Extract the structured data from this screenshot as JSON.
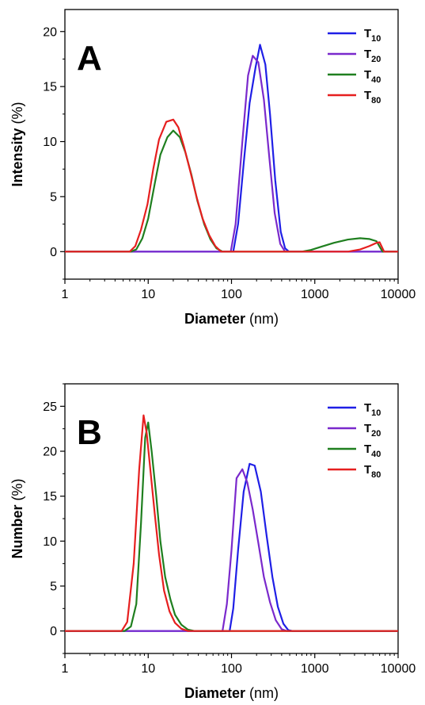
{
  "chart_data": [
    {
      "type": "line",
      "panel_label": "A",
      "xscale": "log",
      "xlim": [
        1,
        10000
      ],
      "ylim": [
        -2.5,
        22
      ],
      "xticks": [
        1,
        10,
        100,
        1000,
        10000
      ],
      "xticklabels": [
        "1",
        "10",
        "100",
        "1000",
        "10000"
      ],
      "yticks": [
        0,
        5,
        10,
        15,
        20
      ],
      "yticklabels": [
        "0",
        "5",
        "10",
        "15",
        "20"
      ],
      "xlabel_bold": "Diameter",
      "xlabel_unit": "(nm)",
      "ylabel_bold": "Intensity",
      "ylabel_unit": "(%)",
      "legend": "top-right",
      "grid": false,
      "series": [
        {
          "name": "T",
          "sub": "10",
          "color": "#1f1fe6",
          "points": [
            [
              1,
              0
            ],
            [
              90,
              0
            ],
            [
              105,
              0
            ],
            [
              120,
              2.5
            ],
            [
              140,
              8
            ],
            [
              165,
              13.5
            ],
            [
              195,
              16.8
            ],
            [
              220,
              18.8
            ],
            [
              255,
              17
            ],
            [
              290,
              12.5
            ],
            [
              335,
              6.5
            ],
            [
              390,
              1.8
            ],
            [
              440,
              0.3
            ],
            [
              490,
              0
            ],
            [
              10000,
              0
            ]
          ]
        },
        {
          "name": "T",
          "sub": "20",
          "color": "#7a29cc",
          "points": [
            [
              1,
              0
            ],
            [
              85,
              0
            ],
            [
              98,
              0
            ],
            [
              112,
              2.5
            ],
            [
              135,
              10
            ],
            [
              158,
              16
            ],
            [
              180,
              17.8
            ],
            [
              210,
              17.2
            ],
            [
              245,
              13.8
            ],
            [
              285,
              8.5
            ],
            [
              330,
              3.5
            ],
            [
              385,
              0.7
            ],
            [
              440,
              0
            ],
            [
              10000,
              0
            ]
          ]
        },
        {
          "name": "T",
          "sub": "40",
          "color": "#1f7f1f",
          "points": [
            [
              1,
              0
            ],
            [
              6.2,
              0
            ],
            [
              7.2,
              0.2
            ],
            [
              8.5,
              1.2
            ],
            [
              10,
              3
            ],
            [
              12,
              6.2
            ],
            [
              14,
              8.8
            ],
            [
              17,
              10.4
            ],
            [
              20,
              11
            ],
            [
              24,
              10.4
            ],
            [
              28,
              9
            ],
            [
              33,
              7
            ],
            [
              39,
              4.6
            ],
            [
              47,
              2.5
            ],
            [
              56,
              1.1
            ],
            [
              66,
              0.3
            ],
            [
              78,
              0
            ],
            [
              700,
              0
            ],
            [
              900,
              0.15
            ],
            [
              1200,
              0.45
            ],
            [
              1700,
              0.8
            ],
            [
              2500,
              1.1
            ],
            [
              3500,
              1.22
            ],
            [
              4500,
              1.15
            ],
            [
              5500,
              0.95
            ],
            [
              6500,
              0
            ],
            [
              10000,
              0
            ]
          ]
        },
        {
          "name": "T",
          "sub": "80",
          "color": "#e61f1f",
          "points": [
            [
              1,
              0
            ],
            [
              6,
              0
            ],
            [
              7,
              0.5
            ],
            [
              8.2,
              2
            ],
            [
              9.8,
              4.3
            ],
            [
              11.5,
              7.5
            ],
            [
              13.5,
              10.2
            ],
            [
              16.5,
              11.8
            ],
            [
              20,
              12
            ],
            [
              23,
              11.3
            ],
            [
              27,
              9.5
            ],
            [
              32,
              7.3
            ],
            [
              38,
              5
            ],
            [
              45,
              3
            ],
            [
              54,
              1.5
            ],
            [
              64,
              0.5
            ],
            [
              75,
              0
            ],
            [
              2500,
              0
            ],
            [
              3500,
              0.2
            ],
            [
              4500,
              0.5
            ],
            [
              5500,
              0.8
            ],
            [
              6000,
              0.85
            ],
            [
              6800,
              0
            ],
            [
              10000,
              0
            ]
          ]
        }
      ]
    },
    {
      "type": "line",
      "panel_label": "B",
      "xscale": "log",
      "xlim": [
        1,
        10000
      ],
      "ylim": [
        -2.5,
        27.5
      ],
      "xticks": [
        1,
        10,
        100,
        1000,
        10000
      ],
      "xticklabels": [
        "1",
        "10",
        "100",
        "1000",
        "10000"
      ],
      "yticks": [
        0,
        5,
        10,
        15,
        20,
        25
      ],
      "yticklabels": [
        "0",
        "5",
        "10",
        "15",
        "20",
        "25"
      ],
      "xlabel_bold": "Diameter",
      "xlabel_unit": "(nm)",
      "ylabel_bold": "Number",
      "ylabel_unit": "(%)",
      "legend": "top-right",
      "grid": false,
      "series": [
        {
          "name": "T",
          "sub": "10",
          "color": "#1f1fe6",
          "points": [
            [
              1,
              0
            ],
            [
              95,
              0
            ],
            [
              105,
              2.5
            ],
            [
              120,
              9
            ],
            [
              140,
              15.5
            ],
            [
              165,
              18.6
            ],
            [
              190,
              18.4
            ],
            [
              225,
              15.5
            ],
            [
              265,
              10.5
            ],
            [
              310,
              6
            ],
            [
              360,
              2.7
            ],
            [
              420,
              0.8
            ],
            [
              480,
              0.1
            ],
            [
              540,
              0
            ],
            [
              10000,
              0
            ]
          ]
        },
        {
          "name": "T",
          "sub": "20",
          "color": "#7a29cc",
          "points": [
            [
              1,
              0
            ],
            [
              78,
              0
            ],
            [
              88,
              3
            ],
            [
              100,
              9
            ],
            [
              115,
              17
            ],
            [
              135,
              18
            ],
            [
              155,
              16.5
            ],
            [
              180,
              13.5
            ],
            [
              210,
              9.8
            ],
            [
              245,
              6
            ],
            [
              290,
              3.2
            ],
            [
              340,
              1.2
            ],
            [
              400,
              0.2
            ],
            [
              460,
              0
            ],
            [
              10000,
              0
            ]
          ]
        },
        {
          "name": "T",
          "sub": "40",
          "color": "#1f7f1f",
          "points": [
            [
              1,
              0
            ],
            [
              5.2,
              0
            ],
            [
              6.2,
              0.5
            ],
            [
              7.2,
              3
            ],
            [
              8.2,
              12
            ],
            [
              9.2,
              21.5
            ],
            [
              10,
              23.2
            ],
            [
              11,
              20
            ],
            [
              12.5,
              15
            ],
            [
              14,
              10
            ],
            [
              16,
              6
            ],
            [
              18.5,
              3.5
            ],
            [
              21,
              1.8
            ],
            [
              25,
              0.7
            ],
            [
              30,
              0.15
            ],
            [
              36,
              0
            ],
            [
              10000,
              0
            ]
          ]
        },
        {
          "name": "T",
          "sub": "80",
          "color": "#e61f1f",
          "points": [
            [
              1,
              0
            ],
            [
              4.8,
              0
            ],
            [
              5.6,
              1
            ],
            [
              6.7,
              7.5
            ],
            [
              7.8,
              18
            ],
            [
              8.8,
              24
            ],
            [
              9.6,
              22
            ],
            [
              10.6,
              18
            ],
            [
              12,
              13
            ],
            [
              13.5,
              8.5
            ],
            [
              15.5,
              4.5
            ],
            [
              18,
              2.2
            ],
            [
              21,
              0.9
            ],
            [
              25,
              0.25
            ],
            [
              30,
              0
            ],
            [
              10000,
              0
            ]
          ]
        }
      ]
    }
  ]
}
